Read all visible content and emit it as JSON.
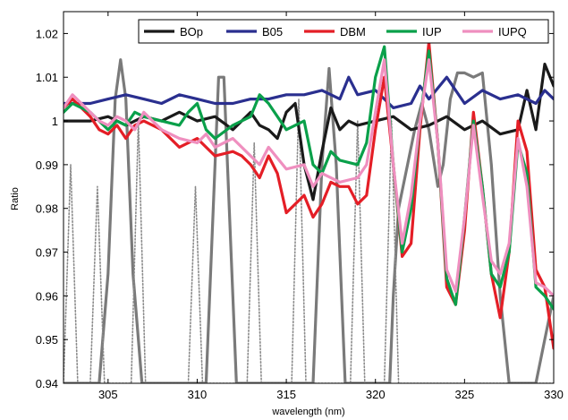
{
  "chart_data": {
    "type": "line",
    "title": "",
    "xlabel": "wavelength (nm)",
    "ylabel": "Ratio",
    "xlim": [
      302.5,
      330
    ],
    "ylim": [
      0.94,
      1.025
    ],
    "xticks": [
      305,
      310,
      315,
      320,
      325,
      330
    ],
    "yticks": [
      0.94,
      0.95,
      0.96,
      0.97,
      0.98,
      0.99,
      1,
      1.01,
      1.02
    ],
    "xtick_labels": [
      "305",
      "310",
      "315",
      "320",
      "325",
      "330"
    ],
    "ytick_labels": [
      "0.94",
      "0.95",
      "0.96",
      "0.97",
      "0.98",
      "0.99",
      "1",
      "1.01",
      "1.02"
    ],
    "grid": false,
    "legend_position": "top-right",
    "legend_orientation": "horizontal",
    "series": [
      {
        "name": "BOp",
        "color": "#1a1a1a",
        "points": [
          [
            302.5,
            1.0
          ],
          [
            304,
            1.0
          ],
          [
            305,
            1.001
          ],
          [
            306,
            0.999
          ],
          [
            307,
            1.001
          ],
          [
            308,
            1.0
          ],
          [
            309,
            1.002
          ],
          [
            310,
            1.0
          ],
          [
            311,
            1.001
          ],
          [
            312,
            0.998
          ],
          [
            313,
            1.002
          ],
          [
            313.5,
            0.999
          ],
          [
            314,
            0.998
          ],
          [
            314.5,
            0.996
          ],
          [
            315,
            1.002
          ],
          [
            315.5,
            1.004
          ],
          [
            316,
            0.99
          ],
          [
            316.5,
            0.982
          ],
          [
            317,
            0.993
          ],
          [
            317.5,
            1.003
          ],
          [
            318,
            0.998
          ],
          [
            318.5,
            1.0
          ],
          [
            319,
            0.999
          ],
          [
            320,
            1.0
          ],
          [
            321,
            1.001
          ],
          [
            322,
            0.998
          ],
          [
            323,
            0.999
          ],
          [
            324,
            1.001
          ],
          [
            325,
            0.998
          ],
          [
            326,
            1.0
          ],
          [
            327,
            0.997
          ],
          [
            328,
            0.998
          ],
          [
            328.5,
            1.007
          ],
          [
            329,
            0.998
          ],
          [
            329.5,
            1.013
          ],
          [
            330,
            1.008
          ]
        ]
      },
      {
        "name": "B05",
        "color": "#2a2f8f",
        "points": [
          [
            302.5,
            1.004
          ],
          [
            304,
            1.004
          ],
          [
            305,
            1.005
          ],
          [
            306,
            1.006
          ],
          [
            307,
            1.005
          ],
          [
            308,
            1.004
          ],
          [
            309,
            1.006
          ],
          [
            310,
            1.005
          ],
          [
            311,
            1.004
          ],
          [
            312,
            1.004
          ],
          [
            313,
            1.005
          ],
          [
            314,
            1.005
          ],
          [
            315,
            1.006
          ],
          [
            316,
            1.006
          ],
          [
            317,
            1.007
          ],
          [
            318,
            1.005
          ],
          [
            318.5,
            1.01
          ],
          [
            319,
            1.006
          ],
          [
            320,
            1.007
          ],
          [
            321,
            1.003
          ],
          [
            322,
            1.004
          ],
          [
            322.5,
            1.008
          ],
          [
            323,
            1.005
          ],
          [
            324,
            1.01
          ],
          [
            325,
            1.004
          ],
          [
            326,
            1.007
          ],
          [
            327,
            1.005
          ],
          [
            328,
            1.006
          ],
          [
            329,
            1.004
          ],
          [
            329.5,
            1.007
          ],
          [
            330,
            1.005
          ]
        ]
      },
      {
        "name": "DBM",
        "color": "#e41e26",
        "points": [
          [
            302.5,
            1.003
          ],
          [
            303,
            1.005
          ],
          [
            304,
            1.001
          ],
          [
            304.5,
            0.998
          ],
          [
            305,
            0.997
          ],
          [
            305.5,
            0.999
          ],
          [
            306,
            0.996
          ],
          [
            306.5,
            0.999
          ],
          [
            307,
            1.0
          ],
          [
            308,
            0.998
          ],
          [
            309,
            0.994
          ],
          [
            310,
            0.996
          ],
          [
            311,
            0.992
          ],
          [
            312,
            0.993
          ],
          [
            312.5,
            0.992
          ],
          [
            313,
            0.99
          ],
          [
            313.5,
            0.987
          ],
          [
            314,
            0.992
          ],
          [
            314.5,
            0.988
          ],
          [
            315,
            0.979
          ],
          [
            316,
            0.983
          ],
          [
            316.5,
            0.978
          ],
          [
            317,
            0.981
          ],
          [
            317.5,
            0.986
          ],
          [
            318,
            0.985
          ],
          [
            318.5,
            0.985
          ],
          [
            319,
            0.981
          ],
          [
            319.5,
            0.983
          ],
          [
            320,
            0.998
          ],
          [
            320.5,
            1.01
          ],
          [
            321,
            0.99
          ],
          [
            321.5,
            0.969
          ],
          [
            322,
            0.972
          ],
          [
            322.5,
            0.998
          ],
          [
            323,
            1.018
          ],
          [
            323.5,
            0.995
          ],
          [
            324,
            0.962
          ],
          [
            324.5,
            0.958
          ],
          [
            325,
            0.975
          ],
          [
            325.5,
            1.002
          ],
          [
            326,
            0.985
          ],
          [
            326.5,
            0.965
          ],
          [
            327,
            0.955
          ],
          [
            327.5,
            0.97
          ],
          [
            328,
            1.0
          ],
          [
            328.5,
            0.993
          ],
          [
            329,
            0.966
          ],
          [
            329.5,
            0.962
          ],
          [
            330,
            0.948
          ]
        ]
      },
      {
        "name": "IUP",
        "color": "#0aa04a",
        "points": [
          [
            302.5,
            1.002
          ],
          [
            303,
            1.004
          ],
          [
            304,
            1.002
          ],
          [
            304.5,
            1.0
          ],
          [
            305,
            0.998
          ],
          [
            305.5,
            1.0
          ],
          [
            306,
            0.999
          ],
          [
            306.5,
            1.002
          ],
          [
            307,
            1.001
          ],
          [
            308,
            1.0
          ],
          [
            309,
            0.999
          ],
          [
            309.5,
            1.002
          ],
          [
            310,
            1.004
          ],
          [
            310.5,
            0.998
          ],
          [
            311,
            0.996
          ],
          [
            312,
            0.999
          ],
          [
            313,
            1.001
          ],
          [
            313.5,
            1.006
          ],
          [
            314,
            1.004
          ],
          [
            315,
            0.998
          ],
          [
            316,
            1.0
          ],
          [
            316.5,
            0.99
          ],
          [
            317,
            0.988
          ],
          [
            317.5,
            0.993
          ],
          [
            318,
            0.991
          ],
          [
            319,
            0.99
          ],
          [
            319.5,
            0.995
          ],
          [
            320,
            1.01
          ],
          [
            320.5,
            1.017
          ],
          [
            321,
            0.99
          ],
          [
            321.5,
            0.97
          ],
          [
            322,
            0.98
          ],
          [
            322.5,
            1.0
          ],
          [
            323,
            1.016
          ],
          [
            323.5,
            0.995
          ],
          [
            324,
            0.964
          ],
          [
            324.5,
            0.958
          ],
          [
            325,
            0.978
          ],
          [
            325.5,
            1.0
          ],
          [
            326,
            0.985
          ],
          [
            326.5,
            0.965
          ],
          [
            327,
            0.962
          ],
          [
            327.5,
            0.97
          ],
          [
            328,
            0.995
          ],
          [
            328.5,
            0.988
          ],
          [
            329,
            0.962
          ],
          [
            329.5,
            0.96
          ],
          [
            330,
            0.957
          ]
        ]
      },
      {
        "name": "IUPQ",
        "color": "#ef8fbf",
        "points": [
          [
            302.5,
            1.003
          ],
          [
            303,
            1.006
          ],
          [
            304,
            1.002
          ],
          [
            304.5,
            1.0
          ],
          [
            305,
            0.999
          ],
          [
            305.5,
            1.001
          ],
          [
            306,
            1.0
          ],
          [
            306.5,
            0.998
          ],
          [
            307,
            1.002
          ],
          [
            308,
            0.998
          ],
          [
            309,
            0.996
          ],
          [
            310,
            0.995
          ],
          [
            310.5,
            0.997
          ],
          [
            311,
            0.994
          ],
          [
            312,
            0.996
          ],
          [
            313,
            0.992
          ],
          [
            313.5,
            0.99
          ],
          [
            314,
            0.994
          ],
          [
            315,
            0.989
          ],
          [
            316,
            0.99
          ],
          [
            316.5,
            0.985
          ],
          [
            317,
            0.988
          ],
          [
            318,
            0.986
          ],
          [
            319,
            0.987
          ],
          [
            319.5,
            0.99
          ],
          [
            320,
            1.002
          ],
          [
            320.5,
            1.014
          ],
          [
            321,
            0.99
          ],
          [
            321.5,
            0.972
          ],
          [
            322,
            0.983
          ],
          [
            322.5,
            1.0
          ],
          [
            323,
            1.014
          ],
          [
            323.5,
            0.995
          ],
          [
            324,
            0.966
          ],
          [
            324.5,
            0.961
          ],
          [
            325,
            0.978
          ],
          [
            325.5,
            0.999
          ],
          [
            326,
            0.983
          ],
          [
            326.5,
            0.968
          ],
          [
            327,
            0.965
          ],
          [
            327.5,
            0.972
          ],
          [
            328,
            0.996
          ],
          [
            328.5,
            0.985
          ],
          [
            329,
            0.963
          ],
          [
            329.5,
            0.962
          ],
          [
            330,
            0.96
          ]
        ]
      },
      {
        "name": "",
        "color": "#7a7a7a",
        "style": "solid-thick",
        "points": [
          [
            302.5,
            0.94
          ],
          [
            304.5,
            0.94
          ],
          [
            305,
            0.965
          ],
          [
            305.4,
            1.005
          ],
          [
            305.7,
            1.014
          ],
          [
            306,
            1.005
          ],
          [
            306.4,
            0.965
          ],
          [
            306.9,
            0.94
          ],
          [
            310.5,
            0.94
          ],
          [
            310.9,
            0.98
          ],
          [
            311.2,
            1.01
          ],
          [
            311.5,
            1.01
          ],
          [
            311.8,
            0.98
          ],
          [
            312.2,
            0.94
          ],
          [
            316.5,
            0.94
          ],
          [
            317,
            0.99
          ],
          [
            317.4,
            1.012
          ],
          [
            317.8,
            0.99
          ],
          [
            318.3,
            0.94
          ],
          [
            320.8,
            0.94
          ],
          [
            321,
            0.96
          ],
          [
            321.3,
            0.98
          ],
          [
            321.8,
            0.99
          ],
          [
            322.2,
            0.998
          ],
          [
            322.6,
            1.004
          ],
          [
            323,
            0.998
          ],
          [
            323.5,
            0.985
          ],
          [
            323.8,
            0.99
          ],
          [
            324.2,
            1.005
          ],
          [
            324.6,
            1.011
          ],
          [
            325,
            1.011
          ],
          [
            325.5,
            1.01
          ],
          [
            326,
            1.011
          ],
          [
            326.5,
            0.99
          ],
          [
            327,
            0.96
          ],
          [
            327.5,
            0.94
          ],
          [
            329,
            0.94
          ],
          [
            329.5,
            0.95
          ],
          [
            330,
            0.96
          ]
        ]
      },
      {
        "name": "",
        "color": "#8a8a8a",
        "style": "dotted",
        "points": [
          [
            302.5,
            0.94
          ],
          [
            302.9,
            0.99
          ],
          [
            303.3,
            0.94
          ],
          [
            304,
            0.94
          ],
          [
            304.4,
            0.985
          ],
          [
            304.8,
            0.94
          ],
          [
            306.3,
            0.94
          ],
          [
            306.7,
            1.0
          ],
          [
            307.1,
            0.94
          ],
          [
            309.5,
            0.94
          ],
          [
            309.9,
            0.985
          ],
          [
            310.3,
            0.94
          ],
          [
            312.8,
            0.94
          ],
          [
            313.2,
            0.995
          ],
          [
            313.6,
            0.94
          ],
          [
            315.3,
            0.94
          ],
          [
            315.7,
            1.005
          ],
          [
            316.1,
            0.94
          ],
          [
            318.6,
            0.94
          ],
          [
            319,
            1.0
          ],
          [
            319.4,
            0.94
          ],
          [
            320.5,
            0.94
          ],
          [
            320.9,
            1.0
          ],
          [
            321.3,
            0.94
          ],
          [
            330,
            0.94
          ]
        ]
      }
    ]
  }
}
